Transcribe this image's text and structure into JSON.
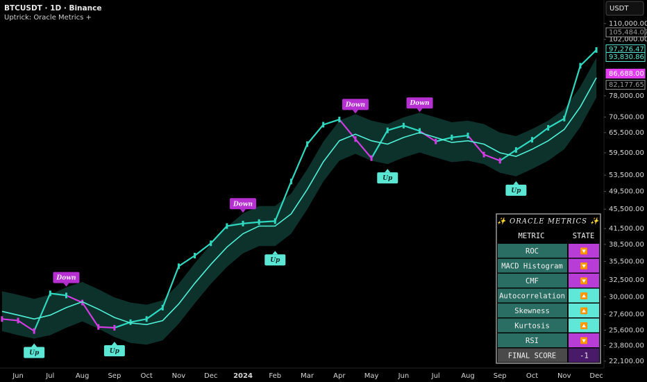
{
  "header": {
    "symbol": "BTCUSDT · 1D · Binance",
    "indicator": "Uptrick: Oracle Metrics +",
    "currency": "USDT"
  },
  "chart_data": {
    "type": "candlestick",
    "log_scale": true,
    "ylim": [
      21380,
      123000
    ],
    "yticks": [
      {
        "value": 110000,
        "label": "110,000.00"
      },
      {
        "value": 102000,
        "label": "102,000.00"
      },
      {
        "value": 78000,
        "label": "78,000.00"
      },
      {
        "value": 70500,
        "label": "70,500.00"
      },
      {
        "value": 65500,
        "label": "65,500.00"
      },
      {
        "value": 59500,
        "label": "59,500.00"
      },
      {
        "value": 53500,
        "label": "53,500.00"
      },
      {
        "value": 49500,
        "label": "49,500.00"
      },
      {
        "value": 45500,
        "label": "45,500.00"
      },
      {
        "value": 41500,
        "label": "41,500.00"
      },
      {
        "value": 38500,
        "label": "38,500.00"
      },
      {
        "value": 35500,
        "label": "35,500.00"
      },
      {
        "value": 32500,
        "label": "32,500.00"
      },
      {
        "value": 30000,
        "label": "30,000.00"
      },
      {
        "value": 27600,
        "label": "27,600.00"
      },
      {
        "value": 25600,
        "label": "25,600.00"
      },
      {
        "value": 23800,
        "label": "23,800.00"
      },
      {
        "value": 22100,
        "label": "22,100.00"
      }
    ],
    "price_labels": [
      {
        "value": 105484.07,
        "label": "105,484.07",
        "color": "#9a9a9a",
        "filled": false
      },
      {
        "value": 97276.47,
        "label": "97,276.47",
        "color": "#5ce6d4",
        "filled": false
      },
      {
        "value": 93830.86,
        "label": "93,830.86",
        "color": "#5ce6d4",
        "filled": false
      },
      {
        "value": 86688.0,
        "label": "86,688.00",
        "color": "#e23cf0",
        "filled": true
      },
      {
        "value": 82177.65,
        "label": "82,177.65",
        "color": "#9a9a9a",
        "filled": false
      }
    ],
    "categories": [
      null,
      "Jun",
      null,
      "Jul",
      null,
      "Aug",
      null,
      "Sep",
      null,
      "Oct",
      null,
      "Nov",
      null,
      "Dec",
      null,
      "2024",
      null,
      "Feb",
      null,
      "Mar",
      null,
      "Apr",
      null,
      "May",
      null,
      "Jun",
      null,
      "Jul",
      null,
      "Aug",
      null,
      "Sep",
      null,
      "Oct",
      null,
      "Nov",
      null,
      "Dec"
    ],
    "series": [
      {
        "role": "band",
        "color": "#0f3b34",
        "upper": [
          30800,
          30300,
          29700,
          30300,
          31400,
          32200,
          31100,
          29900,
          29200,
          28900,
          29500,
          31900,
          35200,
          38500,
          41800,
          44600,
          46200,
          46200,
          49000,
          55000,
          62700,
          69300,
          71500,
          69300,
          68200,
          70400,
          72000,
          70400,
          68800,
          69300,
          68200,
          65500,
          64400,
          66600,
          69300,
          73200,
          81400,
          93500
        ],
        "lower": [
          25500,
          25000,
          24600,
          25000,
          25900,
          26700,
          25800,
          24800,
          24100,
          23900,
          24400,
          26400,
          29100,
          31900,
          34600,
          36900,
          38200,
          38200,
          40500,
          45500,
          51900,
          57300,
          59200,
          57300,
          56400,
          58200,
          59600,
          58200,
          56900,
          57300,
          56400,
          54100,
          53200,
          55100,
          57300,
          60500,
          67300,
          77400
        ]
      },
      {
        "role": "price",
        "color": "#2fd8bf",
        "down_color": "#d13ce0",
        "values": [
          27000,
          26800,
          25500,
          30500,
          30200,
          29200,
          26000,
          25900,
          26600,
          27000,
          28500,
          34700,
          36500,
          38700,
          42000,
          42500,
          42800,
          43000,
          51900,
          62000,
          68000,
          69700,
          63500,
          58000,
          66200,
          67700,
          66000,
          62800,
          64000,
          64600,
          59000,
          57300,
          60300,
          63300,
          67000,
          70000,
          90000,
          97000
        ]
      },
      {
        "role": "trend",
        "color": "#4ff0d6",
        "values": [
          28000,
          27500,
          27000,
          27500,
          28500,
          29300,
          28300,
          27200,
          26500,
          26300,
          26800,
          29000,
          32000,
          35000,
          38000,
          40500,
          42000,
          42000,
          44500,
          50000,
          57000,
          63000,
          65000,
          63000,
          62000,
          64000,
          65500,
          64000,
          62500,
          63000,
          62000,
          59500,
          58500,
          60500,
          63000,
          66500,
          74000,
          85000
        ]
      }
    ],
    "signals": [
      null,
      null,
      "Up",
      null,
      "Down",
      null,
      null,
      "Up",
      null,
      null,
      null,
      null,
      null,
      null,
      null,
      "Down",
      null,
      "Up",
      null,
      null,
      null,
      null,
      "Down",
      null,
      "Up",
      null,
      "Down",
      null,
      null,
      null,
      null,
      null,
      "Up",
      null,
      null,
      null,
      null,
      null
    ],
    "signal_styles": {
      "Up": {
        "fill": "#5ce6d4",
        "ink": "#0b2b27",
        "below": true
      },
      "Down": {
        "fill": "#b52fd1",
        "ink": "#f8e8ff",
        "below": false
      }
    }
  },
  "table": {
    "title": "✨ ORACLE METRICS ✨",
    "headers": [
      "METRIC",
      "STATE"
    ],
    "rows": [
      {
        "metric": "ROC",
        "state": "🔽",
        "color": "#b83cd6"
      },
      {
        "metric": "MACD Histogram",
        "state": "🔽",
        "color": "#b83cd6"
      },
      {
        "metric": "CMF",
        "state": "🔽",
        "color": "#b83cd6"
      },
      {
        "metric": "Autocorrelation",
        "state": "🔼",
        "color": "#5fe8d8"
      },
      {
        "metric": "Skewness",
        "state": "🔼",
        "color": "#5fe8d8"
      },
      {
        "metric": "Kurtosis",
        "state": "🔼",
        "color": "#5fe8d8"
      },
      {
        "metric": "RSI",
        "state": "🔽",
        "color": "#b83cd6"
      }
    ],
    "final": {
      "label": "FINAL SCORE",
      "value": -1
    }
  }
}
